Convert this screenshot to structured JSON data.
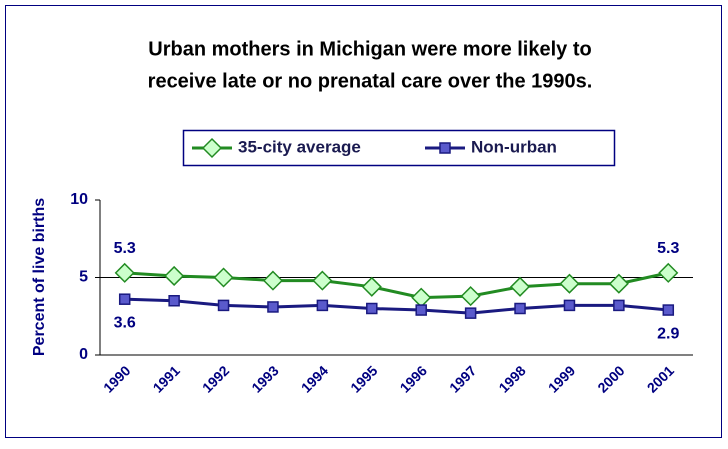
{
  "chart_data": {
    "type": "line",
    "title": [
      "Urban mothers in Michigan were more likely to",
      "receive late or no prenatal care over the 1990s."
    ],
    "ylabel": "Percent of live births",
    "categories": [
      "1990",
      "1991",
      "1992",
      "1993",
      "1994",
      "1995",
      "1996",
      "1997",
      "1998",
      "1999",
      "2000",
      "2001"
    ],
    "series": [
      {
        "name": "35-city average",
        "color": "#228b22",
        "marker": "diamond",
        "marker_fill": "#ccffcc",
        "values": [
          5.3,
          5.1,
          5.0,
          4.8,
          4.8,
          4.4,
          3.7,
          3.8,
          4.4,
          4.6,
          4.6,
          5.3
        ],
        "value_labels": [
          "5.3",
          null,
          null,
          null,
          null,
          null,
          null,
          null,
          null,
          null,
          null,
          "5.3"
        ]
      },
      {
        "name": "Non-urban",
        "color": "#1a1a80",
        "marker": "square",
        "marker_fill": "#5a5acc",
        "values": [
          3.6,
          3.5,
          3.2,
          3.1,
          3.2,
          3.0,
          2.9,
          2.7,
          3.0,
          3.2,
          3.2,
          2.9
        ],
        "value_labels": [
          "3.6",
          null,
          null,
          null,
          null,
          null,
          null,
          null,
          null,
          null,
          null,
          "2.9"
        ]
      }
    ],
    "ylim": [
      0,
      10
    ],
    "yticks": [
      0,
      5,
      10
    ],
    "grid": true,
    "legend": "top"
  }
}
